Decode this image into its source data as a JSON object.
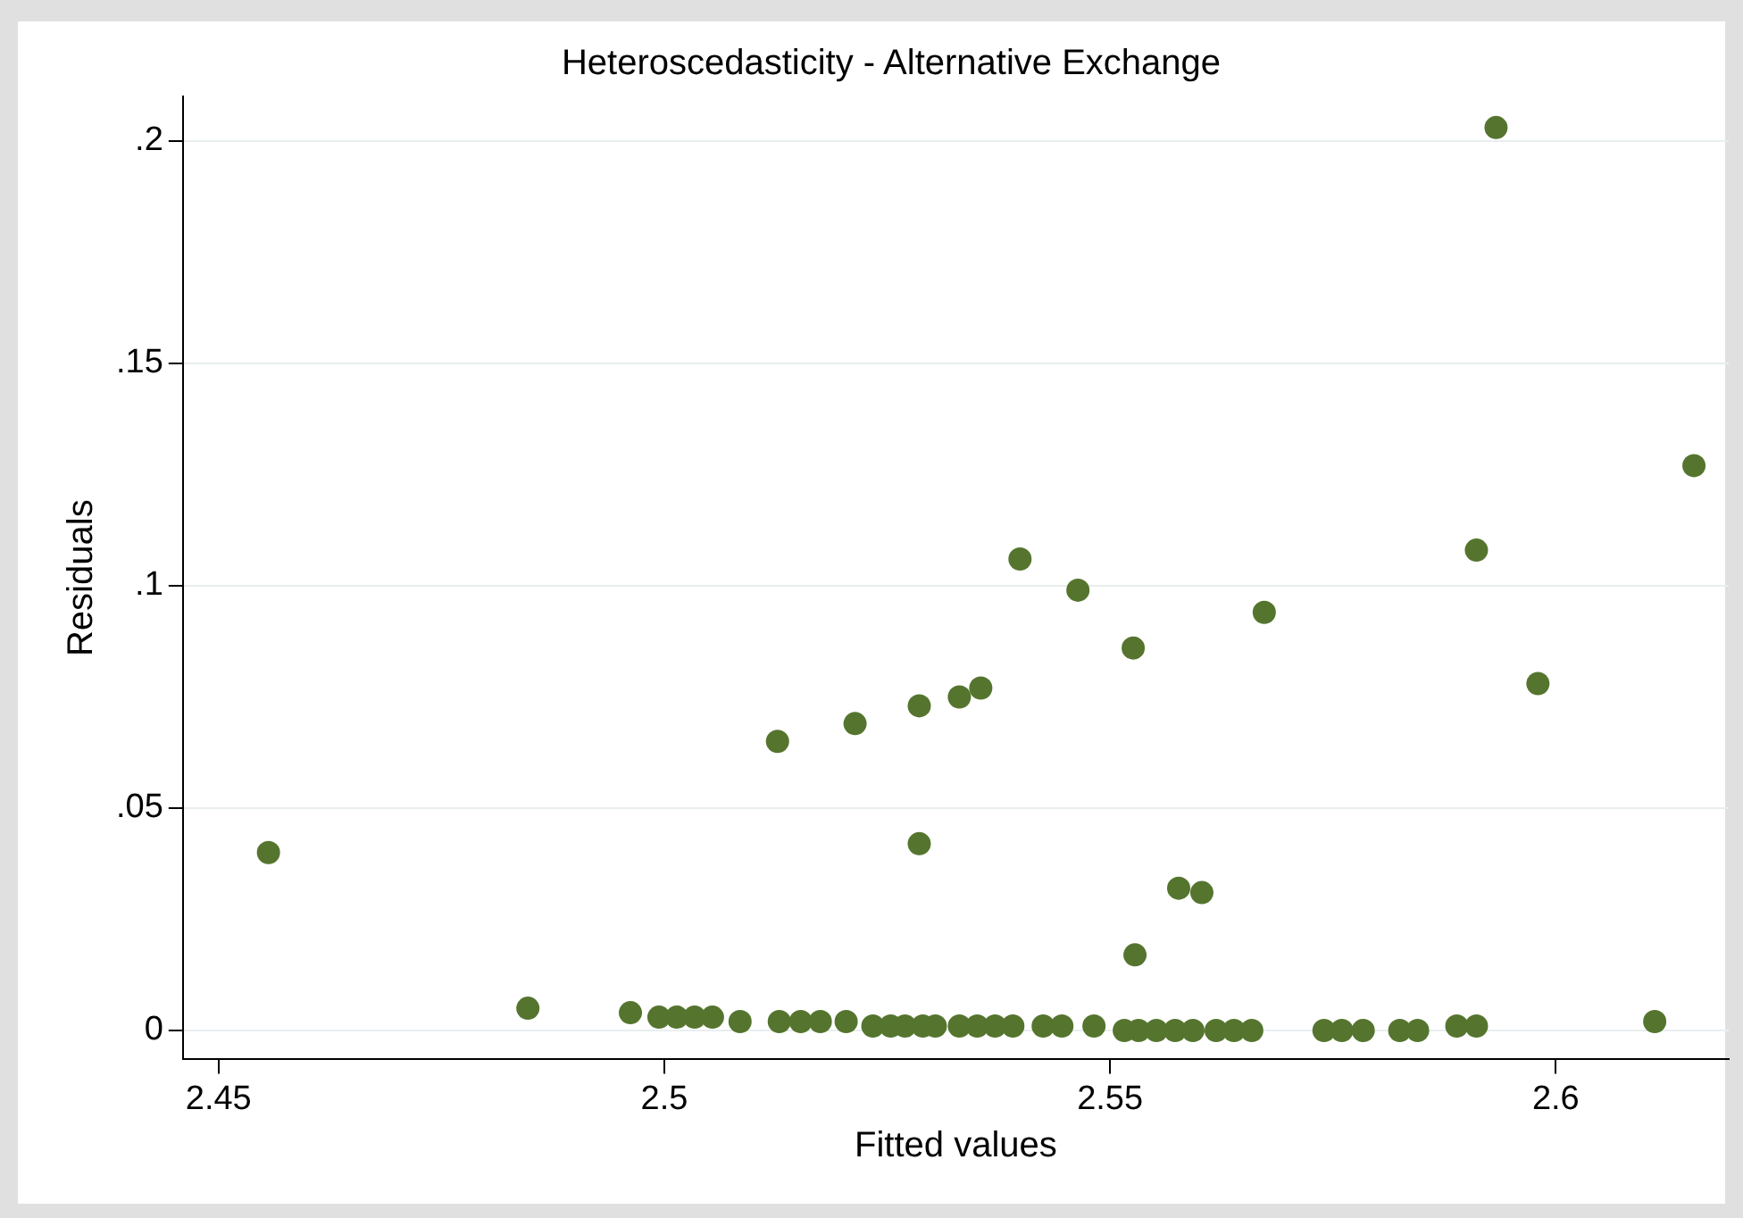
{
  "chart_data": {
    "type": "scatter",
    "title": "Heteroscedasticity - Alternative Exchange",
    "xlabel": "Fitted values",
    "ylabel": "Residuals",
    "x": [
      2.4556,
      2.5127,
      2.5214,
      2.5286,
      2.5286,
      2.5331,
      2.5355,
      2.5399,
      2.5464,
      2.5526,
      2.5528,
      2.5577,
      2.5603,
      2.5673,
      2.5911,
      2.5933,
      2.598,
      2.6155,
      2.6111,
      2.4847,
      2.4962,
      2.4994,
      2.5014,
      2.5034,
      2.5054,
      2.5085,
      2.5129,
      2.5153,
      2.5175,
      2.5204,
      2.5234,
      2.5254,
      2.527,
      2.529,
      2.5304,
      2.5331,
      2.5351,
      2.5371,
      2.5391,
      2.5425,
      2.5446,
      2.5472,
      2.5482,
      2.5516,
      2.5532,
      2.5552,
      2.5573,
      2.5593,
      2.5619,
      2.5639,
      2.5659,
      2.574,
      2.576,
      2.5784,
      2.5825,
      2.5845,
      2.5889,
      2.5911
    ],
    "series": [
      {
        "color": "#55752f",
        "values": [
          0.04,
          0.065,
          0.069,
          0.073,
          0.042,
          0.075,
          0.077,
          0.106,
          0.099,
          0.086,
          0.017,
          0.032,
          0.031,
          0.094,
          0.108,
          0.203,
          0.078,
          0.127,
          0.002,
          0.005,
          0.004,
          0.003,
          0.003,
          0.003,
          0.003,
          0.002,
          0.002,
          0.002,
          0.002,
          0.002,
          0.001,
          0.001,
          0.001,
          0.001,
          0.001,
          0.001,
          0.001,
          0.001,
          0.001,
          0.001,
          0.001,
          null,
          0.001,
          0,
          0,
          0,
          0,
          0,
          0,
          0,
          0,
          0,
          0,
          0,
          0,
          0,
          0.001,
          0.001
        ]
      }
    ],
    "xlim": [
      2.446,
      2.6194
    ],
    "ylim": [
      -0.0065,
      0.21
    ],
    "xticks": [
      2.45,
      2.5,
      2.55,
      2.6
    ],
    "yticks": [
      {
        "value": 0,
        "label": "0"
      },
      {
        "value": 0.05,
        "label": ".05"
      },
      {
        "value": 0.1,
        "label": ".1"
      },
      {
        "value": 0.15,
        "label": ".15"
      },
      {
        "value": 0.2,
        "label": ".2"
      }
    ],
    "grid": "y",
    "legend": false,
    "marker": "circle"
  }
}
